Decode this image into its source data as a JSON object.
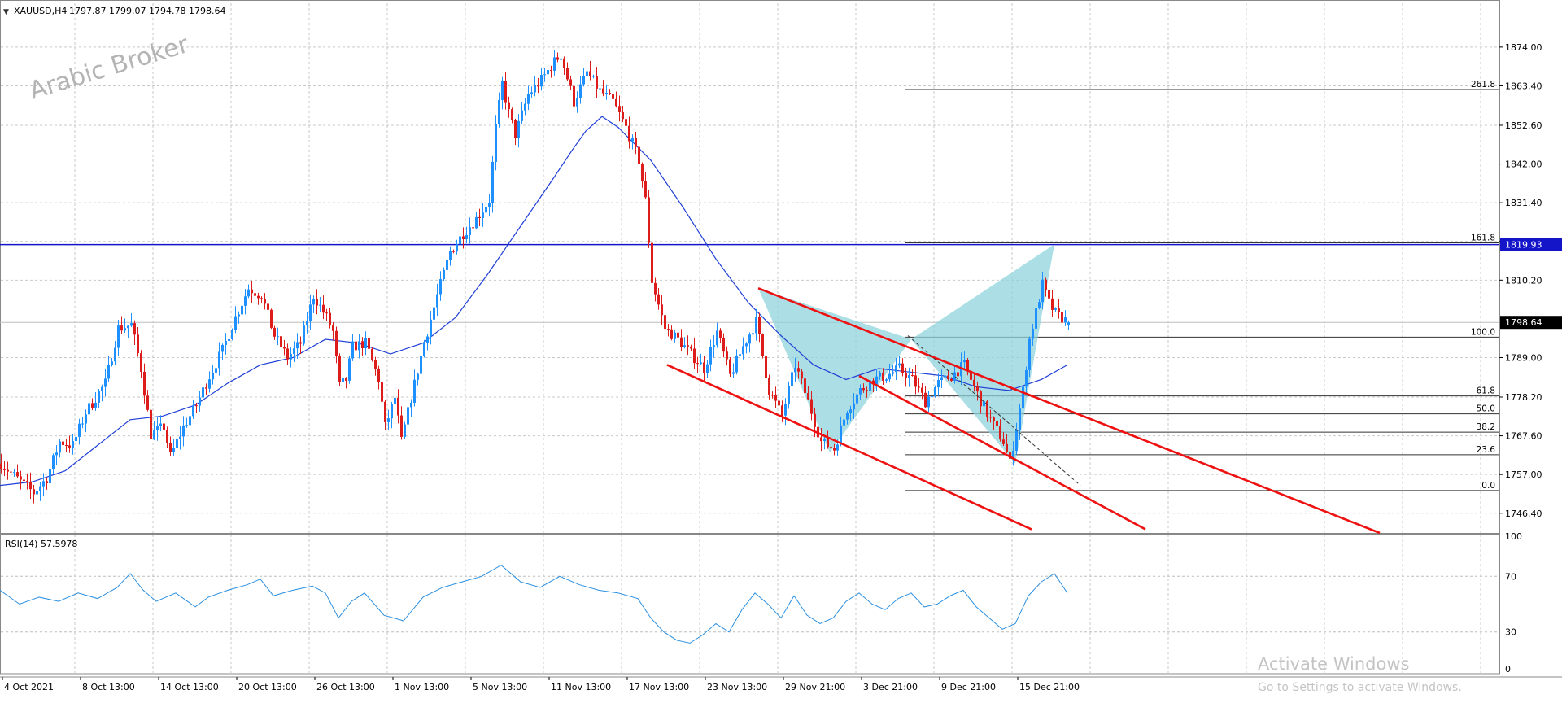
{
  "header": {
    "symbol_label": "XAUUSD,H4",
    "ohlc": "1797.87 1799.07 1794.78 1798.64"
  },
  "watermark": "Arabic Broker",
  "activation": {
    "title": "Activate Windows",
    "subtitle": "Go to Settings to activate Windows."
  },
  "colors": {
    "bull": "#1e90ff",
    "bear": "#dd1c1c",
    "ma": "#1f3fd6",
    "resistance": "#1414c8",
    "channel": "#ee1111",
    "pattern_fill": "#8fd3dc",
    "fib": "#333333",
    "rsi": "#2a8fe0",
    "grid": "#c9c9c9"
  },
  "chart_data": [
    {
      "type": "candlestick",
      "symbol": "XAUUSD",
      "timeframe": "H4",
      "ylim": [
        1741,
        1886
      ],
      "y_ticks": [
        "1874.00",
        "1863.40",
        "1852.60",
        "1842.00",
        "1831.40",
        "1820.80",
        "1810.20",
        "1789.00",
        "1778.20",
        "1767.60",
        "1757.00",
        "1746.40"
      ],
      "x_tick_labels": [
        "4 Oct 2021",
        "8 Oct 13:00",
        "14 Oct 13:00",
        "20 Oct 13:00",
        "26 Oct 13:00",
        "1 Nov 13:00",
        "5 Nov 13:00",
        "11 Nov 13:00",
        "17 Nov 13:00",
        "23 Nov 13:00",
        "29 Nov 21:00",
        "3 Dec 21:00",
        "9 Dec 21:00",
        "15 Dec 21:00"
      ],
      "price_tags": [
        {
          "label": "1819.93",
          "value": 1819.93,
          "kind": "resistance"
        },
        {
          "label": "1798.64",
          "value": 1798.64,
          "kind": "current"
        }
      ],
      "price_path": [
        [
          0,
          1760
        ],
        [
          6,
          1755
        ],
        [
          10,
          1752
        ],
        [
          14,
          1756
        ],
        [
          18,
          1766
        ],
        [
          22,
          1765
        ],
        [
          26,
          1774
        ],
        [
          32,
          1782
        ],
        [
          36,
          1797
        ],
        [
          40,
          1798
        ],
        [
          43,
          1786
        ],
        [
          46,
          1768
        ],
        [
          50,
          1770
        ],
        [
          52,
          1762
        ],
        [
          56,
          1770
        ],
        [
          60,
          1776
        ],
        [
          64,
          1784
        ],
        [
          68,
          1791
        ],
        [
          72,
          1800
        ],
        [
          76,
          1808
        ],
        [
          80,
          1806
        ],
        [
          84,
          1795
        ],
        [
          88,
          1789
        ],
        [
          92,
          1793
        ],
        [
          96,
          1806
        ],
        [
          100,
          1800
        ],
        [
          102,
          1796
        ],
        [
          104,
          1781
        ],
        [
          106,
          1783
        ],
        [
          108,
          1792
        ],
        [
          112,
          1793
        ],
        [
          116,
          1783
        ],
        [
          118,
          1770
        ],
        [
          121,
          1778
        ],
        [
          123,
          1766
        ],
        [
          126,
          1778
        ],
        [
          130,
          1793
        ],
        [
          134,
          1806
        ],
        [
          138,
          1818
        ],
        [
          142,
          1823
        ],
        [
          146,
          1827
        ],
        [
          150,
          1832
        ],
        [
          152,
          1852
        ],
        [
          154,
          1864
        ],
        [
          156,
          1856
        ],
        [
          158,
          1850
        ],
        [
          162,
          1861
        ],
        [
          166,
          1865
        ],
        [
          170,
          1870
        ],
        [
          172,
          1872
        ],
        [
          176,
          1859
        ],
        [
          180,
          1867
        ],
        [
          184,
          1862
        ],
        [
          188,
          1859
        ],
        [
          192,
          1852
        ],
        [
          196,
          1843
        ],
        [
          198,
          1832
        ],
        [
          200,
          1810
        ],
        [
          204,
          1797
        ],
        [
          208,
          1794
        ],
        [
          212,
          1790
        ],
        [
          216,
          1786
        ],
        [
          220,
          1796
        ],
        [
          224,
          1784
        ],
        [
          228,
          1792
        ],
        [
          232,
          1799
        ],
        [
          236,
          1780
        ],
        [
          240,
          1773
        ],
        [
          244,
          1787
        ],
        [
          248,
          1777
        ],
        [
          252,
          1766
        ],
        [
          256,
          1764
        ],
        [
          260,
          1775
        ],
        [
          264,
          1780
        ],
        [
          268,
          1783
        ],
        [
          272,
          1784
        ],
        [
          276,
          1786
        ],
        [
          280,
          1783
        ],
        [
          284,
          1777
        ],
        [
          288,
          1782
        ],
        [
          292,
          1784
        ],
        [
          296,
          1787
        ],
        [
          300,
          1779
        ],
        [
          304,
          1772
        ],
        [
          308,
          1766
        ],
        [
          310,
          1760
        ],
        [
          312,
          1770
        ],
        [
          314,
          1780
        ],
        [
          316,
          1794
        ],
        [
          320,
          1809
        ],
        [
          322,
          1804
        ],
        [
          324,
          1801
        ],
        [
          328,
          1798.64
        ]
      ],
      "moving_average": [
        [
          0,
          1754
        ],
        [
          10,
          1755
        ],
        [
          20,
          1758
        ],
        [
          30,
          1765
        ],
        [
          40,
          1772
        ],
        [
          50,
          1773
        ],
        [
          60,
          1776
        ],
        [
          70,
          1782
        ],
        [
          80,
          1787
        ],
        [
          90,
          1789
        ],
        [
          100,
          1794
        ],
        [
          110,
          1793
        ],
        [
          120,
          1790
        ],
        [
          130,
          1793
        ],
        [
          140,
          1800
        ],
        [
          150,
          1812
        ],
        [
          160,
          1825
        ],
        [
          170,
          1838
        ],
        [
          176,
          1846
        ],
        [
          180,
          1851
        ],
        [
          185,
          1855
        ],
        [
          190,
          1852
        ],
        [
          200,
          1843
        ],
        [
          210,
          1830
        ],
        [
          220,
          1816
        ],
        [
          230,
          1804
        ],
        [
          240,
          1795
        ],
        [
          250,
          1787
        ],
        [
          260,
          1783
        ],
        [
          270,
          1786
        ],
        [
          280,
          1785
        ],
        [
          290,
          1784
        ],
        [
          300,
          1781
        ],
        [
          310,
          1780
        ],
        [
          320,
          1783
        ],
        [
          328,
          1787
        ]
      ],
      "fibonacci_levels": [
        {
          "label": "261.8",
          "value": 1862.4
        },
        {
          "label": "161.8",
          "value": 1820.4
        },
        {
          "label": "100.0",
          "value": 1794.6
        },
        {
          "label": "61.8",
          "value": 1778.5
        },
        {
          "label": "50.0",
          "value": 1773.6
        },
        {
          "label": "38.2",
          "value": 1768.6
        },
        {
          "label": "23.6",
          "value": 1762.4
        },
        {
          "label": "0.0",
          "value": 1752.6
        }
      ],
      "butterfly_pattern": [
        [
          233,
          1808
        ],
        [
          255,
          1763
        ],
        [
          280,
          1794
        ],
        [
          312,
          1760
        ],
        [
          324,
          1820
        ]
      ],
      "channel_lines": [
        [
          [
            233,
            1808
          ],
          [
            424,
            1741
          ]
        ],
        [
          [
            205,
            1787
          ],
          [
            317,
            1742
          ]
        ],
        [
          [
            264,
            1784
          ],
          [
            352,
            1742
          ]
        ]
      ],
      "dashed_line": [
        [
          279,
          1795
        ],
        [
          332,
          1754
        ]
      ]
    },
    {
      "type": "line",
      "title": "RSI(14) 57.5978",
      "ylim": [
        0,
        100
      ],
      "y_ticks": [
        "100",
        "70",
        "30",
        "0"
      ],
      "series": [
        {
          "values": [
            [
              0,
              60
            ],
            [
              6,
              50
            ],
            [
              12,
              55
            ],
            [
              18,
              52
            ],
            [
              24,
              58
            ],
            [
              30,
              54
            ],
            [
              36,
              62
            ],
            [
              40,
              72
            ],
            [
              44,
              60
            ],
            [
              48,
              52
            ],
            [
              54,
              58
            ],
            [
              60,
              48
            ],
            [
              64,
              55
            ],
            [
              70,
              60
            ],
            [
              76,
              64
            ],
            [
              80,
              68
            ],
            [
              84,
              56
            ],
            [
              90,
              60
            ],
            [
              96,
              63
            ],
            [
              100,
              58
            ],
            [
              104,
              40
            ],
            [
              108,
              52
            ],
            [
              112,
              58
            ],
            [
              118,
              42
            ],
            [
              124,
              38
            ],
            [
              130,
              55
            ],
            [
              136,
              62
            ],
            [
              142,
              66
            ],
            [
              148,
              70
            ],
            [
              154,
              78
            ],
            [
              160,
              66
            ],
            [
              166,
              62
            ],
            [
              172,
              70
            ],
            [
              178,
              64
            ],
            [
              184,
              60
            ],
            [
              190,
              58
            ],
            [
              196,
              54
            ],
            [
              200,
              40
            ],
            [
              204,
              30
            ],
            [
              208,
              24
            ],
            [
              212,
              22
            ],
            [
              216,
              28
            ],
            [
              220,
              36
            ],
            [
              224,
              30
            ],
            [
              228,
              46
            ],
            [
              232,
              58
            ],
            [
              236,
              50
            ],
            [
              240,
              40
            ],
            [
              244,
              56
            ],
            [
              248,
              42
            ],
            [
              252,
              36
            ],
            [
              256,
              40
            ],
            [
              260,
              52
            ],
            [
              264,
              58
            ],
            [
              268,
              50
            ],
            [
              272,
              46
            ],
            [
              276,
              54
            ],
            [
              280,
              58
            ],
            [
              284,
              48
            ],
            [
              288,
              50
            ],
            [
              292,
              56
            ],
            [
              296,
              60
            ],
            [
              300,
              48
            ],
            [
              304,
              40
            ],
            [
              308,
              32
            ],
            [
              312,
              36
            ],
            [
              316,
              56
            ],
            [
              320,
              66
            ],
            [
              324,
              72
            ],
            [
              328,
              58
            ]
          ]
        }
      ]
    }
  ]
}
